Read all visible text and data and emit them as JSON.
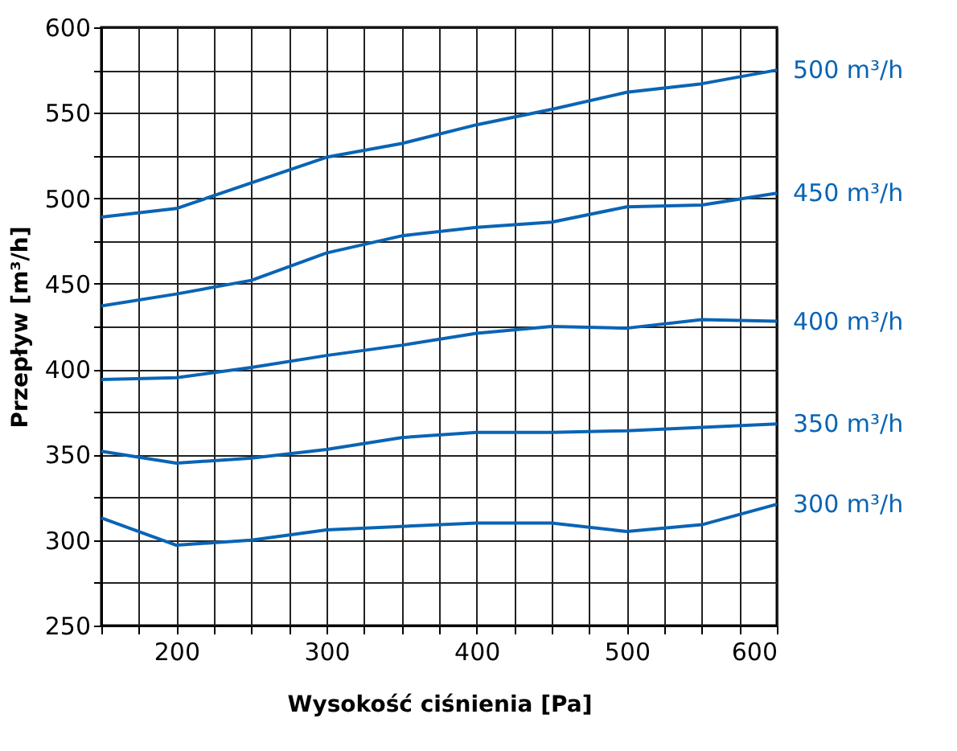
{
  "chart_data": {
    "type": "line",
    "xlabel": "Wysokość ciśnienia [Pa]",
    "ylabel": "Przepływ [m³/h]",
    "x": [
      150,
      200,
      250,
      300,
      350,
      400,
      450,
      500,
      550,
      600
    ],
    "series": [
      {
        "name": "500 m³/h",
        "color": "#0a64b4",
        "values": [
          489,
          494,
          509,
          524,
          532,
          543,
          552,
          562,
          567,
          575
        ]
      },
      {
        "name": "450 m³/h",
        "color": "#0a64b4",
        "values": [
          437,
          444,
          452,
          468,
          478,
          483,
          486,
          495,
          496,
          503
        ]
      },
      {
        "name": "400 m³/h",
        "color": "#0a64b4",
        "values": [
          394,
          395,
          401,
          408,
          414,
          421,
          425,
          424,
          429,
          428
        ]
      },
      {
        "name": "350 m³/h",
        "color": "#0a64b4",
        "values": [
          352,
          345,
          348,
          353,
          360,
          363,
          363,
          364,
          366,
          368
        ]
      },
      {
        "name": "300 m³/h",
        "color": "#0a64b4",
        "values": [
          313,
          297,
          300,
          306,
          308,
          310,
          310,
          305,
          309,
          321
        ]
      }
    ],
    "xlim": [
      150,
      600
    ],
    "ylim": [
      250,
      600
    ],
    "xticks": [
      {
        "value": 150,
        "label": null
      },
      {
        "value": 175,
        "label": null
      },
      200,
      {
        "value": 225,
        "label": null
      },
      {
        "value": 250,
        "label": null
      },
      {
        "value": 275,
        "label": null
      },
      300,
      {
        "value": 325,
        "label": null
      },
      {
        "value": 350,
        "label": null
      },
      {
        "value": 375,
        "label": null
      },
      400,
      {
        "value": 425,
        "label": null
      },
      {
        "value": 450,
        "label": null
      },
      {
        "value": 475,
        "label": null
      },
      500,
      {
        "value": 525,
        "label": null
      },
      {
        "value": 550,
        "label": null
      },
      {
        "value": 575,
        "label": null
      },
      600
    ],
    "yticks": [
      250,
      {
        "value": 275,
        "label": null
      },
      300,
      {
        "value": 325,
        "label": null
      },
      350,
      {
        "value": 375,
        "label": null
      },
      400,
      {
        "value": 425,
        "label": null
      },
      450,
      {
        "value": 475,
        "label": null
      },
      500,
      {
        "value": 525,
        "label": null
      },
      550,
      {
        "value": 575,
        "label": null
      },
      600
    ],
    "grid": true,
    "marker": "none",
    "line_style": "solid"
  }
}
